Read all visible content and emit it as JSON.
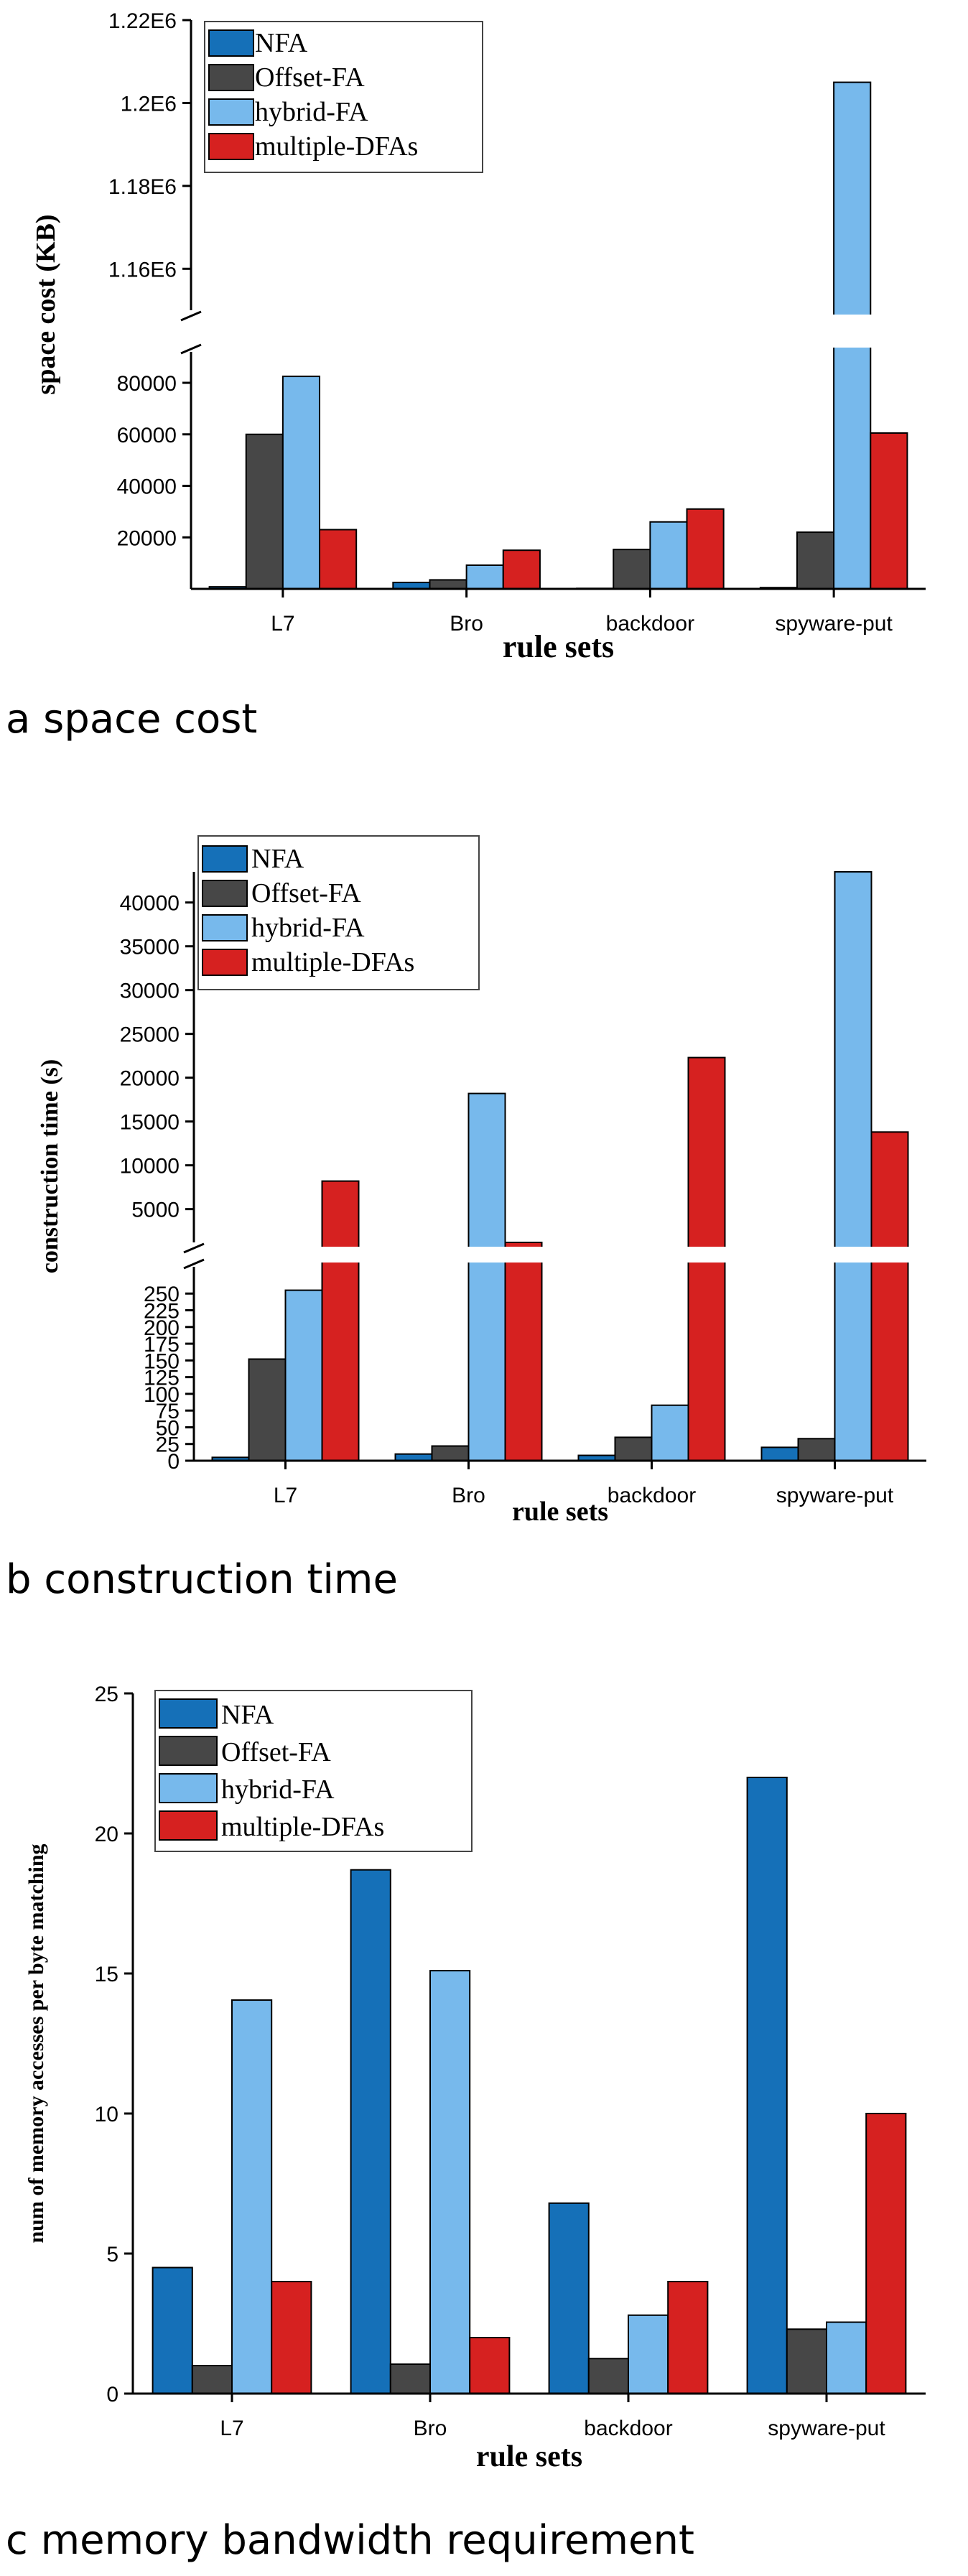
{
  "chart_data": [
    {
      "type": "bar",
      "subfigure": "a",
      "caption": "a space cost",
      "xlabel": "rule sets",
      "ylabel": "space cost (KB)",
      "categories": [
        "L7",
        "Bro",
        "backdoor",
        "spyware-put"
      ],
      "series": [
        {
          "name": "NFA",
          "color": "#1570b8",
          "values": [
            800,
            2500,
            200,
            500
          ]
        },
        {
          "name": "Offset-FA",
          "color": "#474747",
          "values": [
            60000,
            3500,
            15300,
            22000
          ]
        },
        {
          "name": "hybrid-FA",
          "color": "#77b9ec",
          "values": [
            82500,
            9200,
            26000,
            1205000
          ]
        },
        {
          "name": "multiple-DFAs",
          "color": "#d62120",
          "values": [
            23000,
            15000,
            31000,
            60500
          ]
        }
      ],
      "axis_break": {
        "lower_ylim": [
          0,
          92000
        ],
        "lower_ticks": [
          20000,
          40000,
          60000,
          80000
        ],
        "upper_ylim": [
          1150000,
          1220000
        ],
        "upper_ticks": [
          1160000,
          1180000,
          1200000,
          1220000
        ],
        "upper_tick_labels": [
          "1.16E6",
          "1.18E6",
          "1.2E6",
          "1.22E6"
        ]
      }
    },
    {
      "type": "bar",
      "subfigure": "b",
      "caption": "b construction time",
      "xlabel": "rule sets",
      "ylabel": "construction time (s)",
      "categories": [
        "L7",
        "Bro",
        "backdoor",
        "spyware-put"
      ],
      "series": [
        {
          "name": "NFA",
          "color": "#1570b8",
          "values": [
            5,
            10,
            8,
            20
          ]
        },
        {
          "name": "Offset-FA",
          "color": "#474747",
          "values": [
            152,
            22,
            35,
            33
          ]
        },
        {
          "name": "hybrid-FA",
          "color": "#77b9ec",
          "values": [
            255,
            18200,
            83,
            43500
          ]
        },
        {
          "name": "multiple-DFAs",
          "color": "#d62120",
          "values": [
            8200,
            1100,
            22300,
            13800
          ]
        }
      ],
      "axis_break": {
        "lower_ylim": [
          0,
          290
        ],
        "lower_ticks": [
          0,
          25,
          50,
          75,
          100,
          125,
          150,
          175,
          200,
          225,
          250
        ],
        "upper_ylim": [
          1200,
          43500
        ],
        "upper_ticks": [
          5000,
          10000,
          15000,
          20000,
          25000,
          30000,
          35000,
          40000
        ]
      }
    },
    {
      "type": "bar",
      "subfigure": "c",
      "caption": "c memory bandwidth requirement",
      "xlabel": "rule sets",
      "ylabel": "num of memory accesses per byte matching",
      "categories": [
        "L7",
        "Bro",
        "backdoor",
        "spyware-put"
      ],
      "series": [
        {
          "name": "NFA",
          "color": "#1570b8",
          "values": [
            4.5,
            18.7,
            6.8,
            22.0
          ]
        },
        {
          "name": "Offset-FA",
          "color": "#474747",
          "values": [
            1.0,
            1.05,
            1.25,
            2.3
          ]
        },
        {
          "name": "hybrid-FA",
          "color": "#77b9ec",
          "values": [
            14.05,
            15.1,
            2.8,
            2.55
          ]
        },
        {
          "name": "multiple-DFAs",
          "color": "#d62120",
          "values": [
            4.0,
            2.0,
            4.0,
            10.0
          ]
        }
      ],
      "ylim": [
        0,
        25
      ],
      "yticks": [
        0,
        5,
        10,
        15,
        20,
        25
      ]
    }
  ]
}
